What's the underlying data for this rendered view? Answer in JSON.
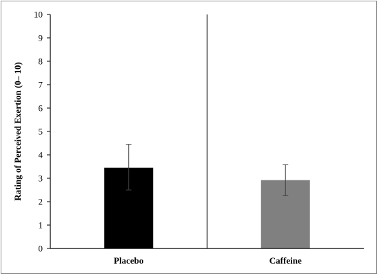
{
  "chart_data": {
    "type": "bar",
    "title": "",
    "xlabel": "",
    "ylabel": "Rating of Perceived Exertion (0– 10)",
    "categories": [
      "Placebo",
      "Caffeine"
    ],
    "values": [
      3.45,
      2.92
    ],
    "error": [
      {
        "low": 2.5,
        "high": 4.45
      },
      {
        "low": 2.25,
        "high": 3.58
      }
    ],
    "colors": [
      "#000000",
      "#808080"
    ],
    "ylim": [
      0,
      10
    ],
    "yticks": [
      "0",
      "1",
      "2",
      "3",
      "4",
      "5",
      "6",
      "7",
      "8",
      "9",
      "10"
    ],
    "grid": false,
    "legend": "none",
    "separator_between_categories": true
  }
}
